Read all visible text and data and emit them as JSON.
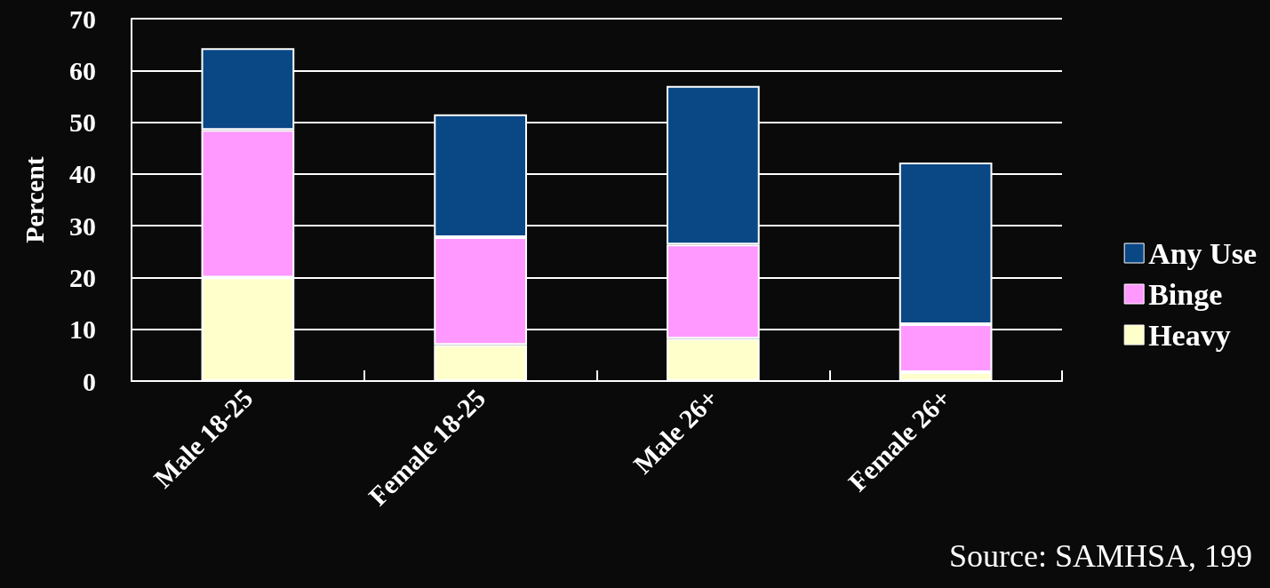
{
  "chart_data": {
    "type": "bar",
    "stacked": true,
    "ylabel": "Percent",
    "categories": [
      "Male 18-25",
      "Female 18-25",
      "Male 26+",
      "Female 26+"
    ],
    "series": [
      {
        "name": "Heavy",
        "color": "#ffffcc",
        "values": [
          20,
          7,
          8.2,
          1.7
        ]
      },
      {
        "name": "Binge",
        "color": "#ff99ff",
        "values": [
          28.5,
          20.8,
          18.2,
          9.3
        ]
      },
      {
        "name": "Any Use",
        "color": "#0a4785",
        "values": [
          15.8,
          23.7,
          30.6,
          31.2
        ]
      }
    ],
    "ylim": [
      0,
      70
    ],
    "yticks": [
      0,
      10,
      20,
      30,
      40,
      50,
      60,
      70
    ],
    "grid": "y",
    "legend": "right",
    "annotations": [
      "Source: SAMHSA, 199"
    ]
  }
}
